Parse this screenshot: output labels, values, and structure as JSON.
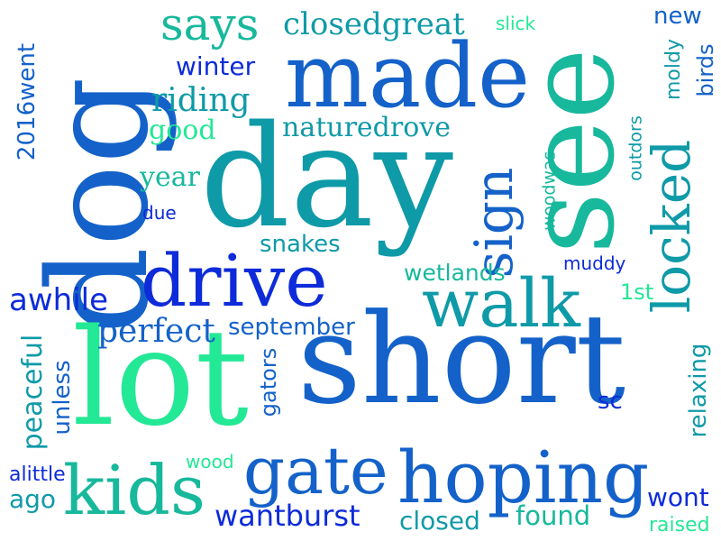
{
  "colors": {
    "background": "#ffffff",
    "royal_blue": "#0d2bd9",
    "medium_blue": "#1462c9",
    "teal": "#0f9aa8",
    "aqua": "#17b89c",
    "mint": "#1fd68c",
    "light_mint": "#23e895"
  },
  "words": {
    "dog": "dog",
    "see": "see",
    "day": "day",
    "made": "made",
    "short": "short",
    "lot": "lot",
    "drive": "drive",
    "hoping": "hoping",
    "gate": "gate",
    "walk": "walk",
    "locked": "locked",
    "sign": "sign",
    "kids": "kids",
    "says": "says",
    "closedgreat": "closedgreat",
    "slick": "slick",
    "new": "new",
    "moldy": "moldy",
    "birds": "birds",
    "winter": "winter",
    "riding": "riding",
    "good": "good",
    "naturedrove": "naturedrove",
    "twentysixteenwent": "2016went",
    "year": "year",
    "due": "due",
    "outdors": "outdors",
    "woodwas": "woodwas",
    "snakes": "snakes",
    "muddy": "muddy",
    "wetlands": "wetlands",
    "awhile": "awhile",
    "first": "1st",
    "perfect": "perfect",
    "september": "september",
    "peaceful": "peaceful",
    "unless": "unless",
    "gators": "gators",
    "relaxing": "relaxing",
    "sc": "sc",
    "wood": "wood",
    "alittle": "alittle",
    "ago": "ago",
    "wantburst": "wantburst",
    "closed": "closed",
    "found": "found",
    "wont": "wont",
    "raised": "raised"
  }
}
